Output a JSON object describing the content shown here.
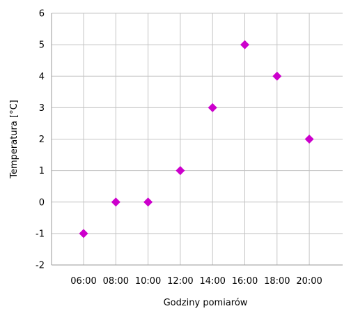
{
  "chart_data": {
    "type": "scatter",
    "title": "",
    "xlabel": "Godziny pomiarów",
    "ylabel": "Temperatura [°C]",
    "x_categories": [
      "06:00",
      "08:00",
      "10:00",
      "12:00",
      "14:00",
      "16:00",
      "18:00",
      "20:00"
    ],
    "ylim": [
      -2,
      6
    ],
    "yticks": [
      -2,
      -1,
      0,
      1,
      2,
      3,
      4,
      5,
      6
    ],
    "grid": true,
    "legend": "none",
    "marker": "diamond",
    "series": [
      {
        "color": "#cc00cc",
        "points": [
          {
            "x": "06:00",
            "y": -1
          },
          {
            "x": "08:00",
            "y": 0
          },
          {
            "x": "10:00",
            "y": 0
          },
          {
            "x": "12:00",
            "y": 1
          },
          {
            "x": "14:00",
            "y": 3
          },
          {
            "x": "16:00",
            "y": 5
          },
          {
            "x": "18:00",
            "y": 4
          },
          {
            "x": "20:00",
            "y": 2
          }
        ]
      }
    ]
  }
}
